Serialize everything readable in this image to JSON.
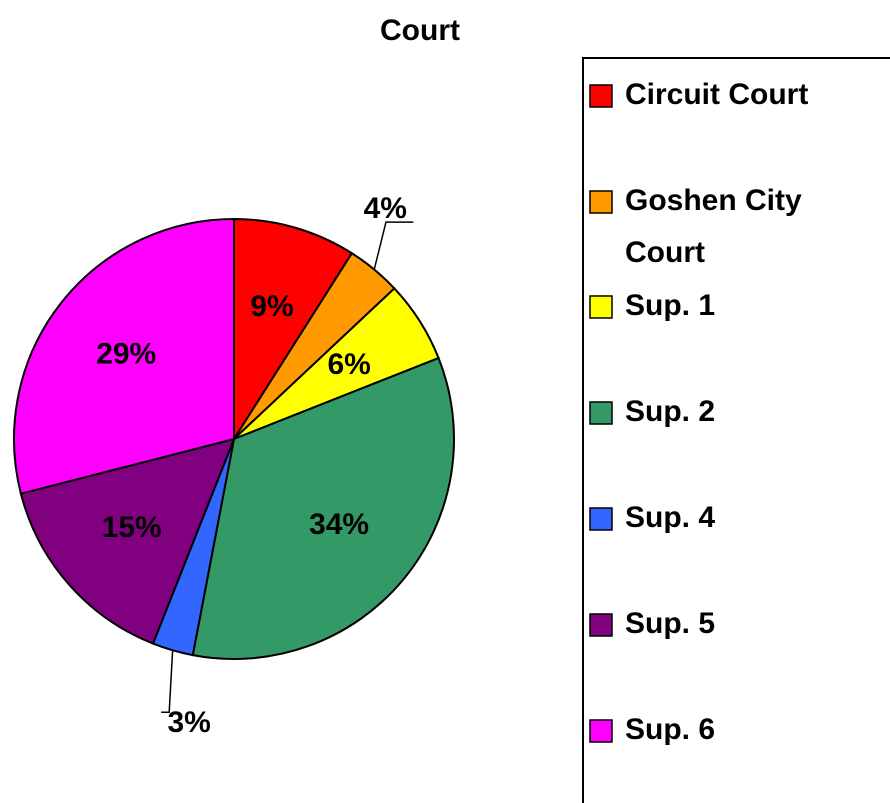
{
  "chart_data": {
    "type": "pie",
    "title": "Court",
    "categories": [
      "Circuit Court",
      "Goshen City Court",
      "Sup. 1",
      "Sup. 2",
      "Sup. 4",
      "Sup. 5",
      "Sup. 6"
    ],
    "values": [
      9,
      4,
      6,
      34,
      3,
      15,
      29
    ],
    "value_labels": [
      "9%",
      "4%",
      "6%",
      "34%",
      "3%",
      "15%",
      "29%"
    ],
    "colors": [
      "#ff0000",
      "#ff9900",
      "#ffff00",
      "#339966",
      "#3366ff",
      "#800080",
      "#ff00ff"
    ],
    "legend": "right"
  }
}
